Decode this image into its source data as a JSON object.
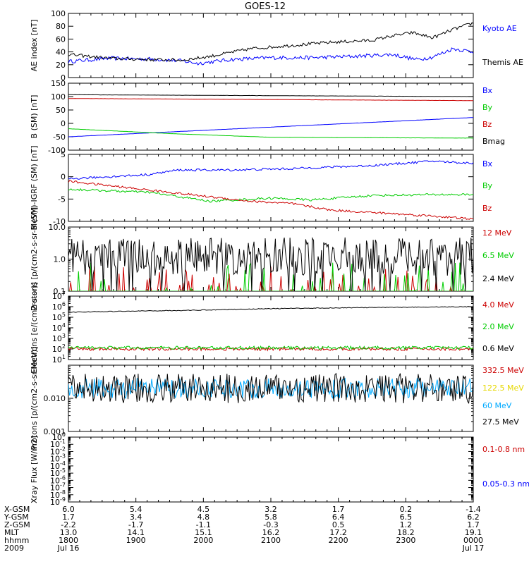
{
  "title": "GOES-12",
  "chart_data": [
    {
      "type": "line",
      "id": "ae",
      "ylabel": "AE index [nT]",
      "ylim": [
        0,
        100
      ],
      "yscale": "linear",
      "yticks": [
        "0",
        "20",
        "40",
        "60",
        "80",
        "100"
      ],
      "legend_placement": "right",
      "series": [
        {
          "name": "Kyoto AE",
          "color": "#0000ff",
          "x": [
            0,
            0.1,
            0.2,
            0.28,
            0.32,
            0.4,
            0.5,
            0.6,
            0.7,
            0.8,
            0.86,
            0.9,
            0.95,
            1.0
          ],
          "values": [
            25,
            30,
            29,
            26,
            22,
            28,
            31,
            31,
            33,
            36,
            28,
            32,
            45,
            40
          ]
        },
        {
          "name": "Themis AE",
          "color": "#000000",
          "x": [
            0,
            0.1,
            0.2,
            0.28,
            0.35,
            0.45,
            0.55,
            0.65,
            0.75,
            0.8,
            0.85,
            0.9,
            0.95,
            1.0
          ],
          "values": [
            36,
            30,
            28,
            27,
            33,
            45,
            50,
            55,
            58,
            65,
            70,
            62,
            75,
            85
          ]
        }
      ]
    },
    {
      "type": "line",
      "id": "bsm",
      "ylabel": "B (SM) [nT]",
      "ylim": [
        -100,
        150
      ],
      "yscale": "linear",
      "yticks": [
        "-100",
        "-50",
        "0",
        "50",
        "100",
        "150"
      ],
      "legend_placement": "right",
      "series": [
        {
          "name": "Bx",
          "color": "#0000ff",
          "x": [
            0,
            1
          ],
          "values": [
            -50,
            22
          ]
        },
        {
          "name": "By",
          "color": "#00cc00",
          "x": [
            0,
            0.25,
            0.5,
            1
          ],
          "values": [
            -20,
            -38,
            -52,
            -55
          ]
        },
        {
          "name": "Bz",
          "color": "#cc0000",
          "x": [
            0,
            1
          ],
          "values": [
            93,
            85
          ]
        },
        {
          "name": "Bmag",
          "color": "#000000",
          "x": [
            0,
            1
          ],
          "values": [
            107,
            100
          ]
        }
      ]
    },
    {
      "type": "line",
      "id": "bigrf",
      "ylabel": "B (SM)-IGRF (SM) [nT]",
      "ylim": [
        -10,
        5
      ],
      "yscale": "linear",
      "yticks": [
        "-10",
        "-5",
        "0",
        "5"
      ],
      "legend_placement": "right",
      "series": [
        {
          "name": "Bx",
          "color": "#0000ff",
          "x": [
            0,
            0.2,
            0.27,
            0.4,
            0.55,
            0.6,
            0.75,
            0.9,
            1.0
          ],
          "values": [
            -0.5,
            0.5,
            1.5,
            1.5,
            1.8,
            2.0,
            2.5,
            3.5,
            3.0
          ]
        },
        {
          "name": "By",
          "color": "#00cc00",
          "x": [
            0,
            0.2,
            0.35,
            0.5,
            0.6,
            0.75,
            0.9,
            1.0
          ],
          "values": [
            -2.8,
            -3.5,
            -5.5,
            -4.8,
            -5.2,
            -4.2,
            -4.0,
            -4.0
          ]
        },
        {
          "name": "Bz",
          "color": "#cc0000",
          "x": [
            0,
            0.15,
            0.3,
            0.45,
            0.55,
            0.65,
            0.75,
            0.9,
            1.0
          ],
          "values": [
            -1.0,
            -2.5,
            -4.0,
            -5.5,
            -6.0,
            -7.5,
            -8.0,
            -8.8,
            -9.5
          ]
        }
      ]
    },
    {
      "type": "line",
      "id": "protons1",
      "ylabel": "Protons [p/(cm2-s-sr-MeV)]",
      "ylim": [
        0.1,
        10
      ],
      "yscale": "log",
      "yticks": [
        "0.1",
        "1.0",
        "10.0"
      ],
      "legend_placement": "right",
      "series": [
        {
          "name": "12 MeV",
          "color": "#cc0000",
          "level": 0.1
        },
        {
          "name": "6.5 MeV",
          "color": "#00cc00",
          "level": 0.13
        },
        {
          "name": "2.4 MeV",
          "color": "#000000",
          "level": 1.2
        }
      ]
    },
    {
      "type": "line",
      "id": "electrons",
      "ylabel": "Electrons [e/(cm2-s-sr)]",
      "ylim": [
        10,
        10000000
      ],
      "yscale": "log",
      "yticks": [
        "10^1",
        "10^2",
        "10^3",
        "10^4",
        "10^5",
        "10^6",
        "10^7"
      ],
      "legend_placement": "right",
      "series": [
        {
          "name": "4.0 MeV",
          "color": "#cc0000",
          "level": 100
        },
        {
          "name": "2.0 MeV",
          "color": "#00cc00",
          "level": 130
        },
        {
          "name": "0.6 MeV",
          "color": "#000000",
          "x": [
            0,
            0.3,
            0.5,
            0.7,
            1.0
          ],
          "values": [
            300000,
            450000,
            650000,
            800000,
            1000000
          ]
        }
      ]
    },
    {
      "type": "line",
      "id": "protons2",
      "ylabel": "Protons [p/(cm2-s-sr-MeV)]",
      "ylim": [
        0.001,
        0.1
      ],
      "yscale": "log",
      "yticks": [
        "0.001",
        "0.010"
      ],
      "legend_placement": "right",
      "series": [
        {
          "name": "332.5 MeV",
          "color": "#cc0000"
        },
        {
          "name": "122.5 MeV",
          "color": "#ffff00"
        },
        {
          "name": "60 MeV",
          "color": "#00aaff",
          "level": 0.02
        },
        {
          "name": "27.5 MeV",
          "color": "#000000",
          "level": 0.02
        }
      ]
    },
    {
      "type": "line",
      "id": "xray",
      "ylabel": "Xray Flux [W/m2]",
      "ylim": [
        1e-09,
        1
      ],
      "yscale": "log",
      "yticks": [
        "10^-9",
        "10^-8",
        "10^-7",
        "10^-6",
        "10^-5",
        "10^-4",
        "10^-3",
        "10^-2",
        "10^-1",
        "10^0"
      ],
      "legend_placement": "right",
      "series": [
        {
          "name": "0.1-0.8 nm",
          "color": "#cc0000"
        },
        {
          "name": "0.05-0.3 nm",
          "color": "#0000ff"
        }
      ]
    }
  ],
  "xaxis": {
    "row_labels": [
      "X-GSM",
      "Y-GSM",
      "Z-GSM",
      "MLT",
      "hhmm",
      "2009"
    ],
    "columns": [
      [
        "6.0",
        "1.7",
        "-2.2",
        "13.0",
        "1800",
        "Jul 16"
      ],
      [
        "5.4",
        "3.4",
        "-1.7",
        "14.1",
        "1900",
        ""
      ],
      [
        "4.5",
        "4.8",
        "-1.1",
        "15.1",
        "2000",
        ""
      ],
      [
        "3.2",
        "5.8",
        "-0.3",
        "16.2",
        "2100",
        ""
      ],
      [
        "1.7",
        "6.4",
        "0.5",
        "17.2",
        "2200",
        ""
      ],
      [
        "0.2",
        "6.5",
        "1.2",
        "18.2",
        "2300",
        ""
      ],
      [
        "-1.4",
        "6.2",
        "1.7",
        "19.1",
        "0000",
        "Jul 17"
      ]
    ]
  }
}
